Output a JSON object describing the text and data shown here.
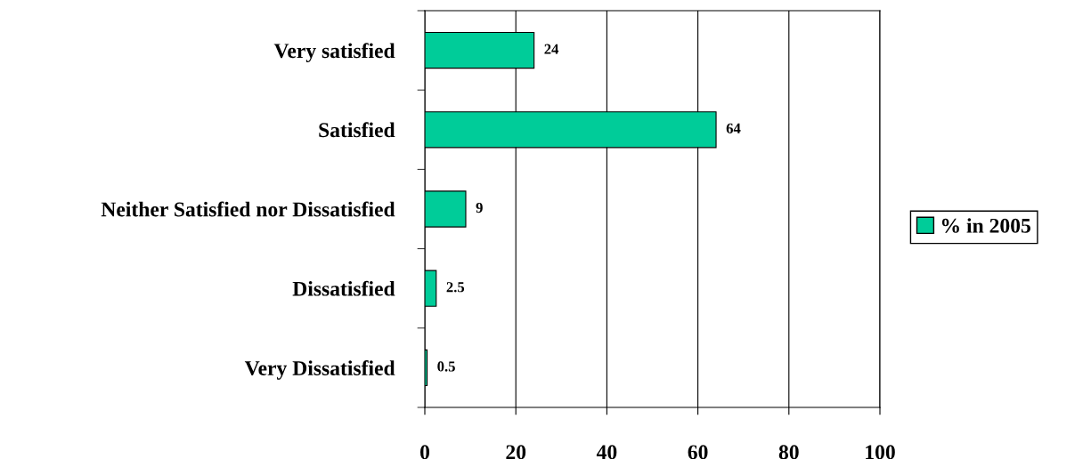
{
  "chart_data": {
    "type": "bar",
    "orientation": "horizontal",
    "categories": [
      "Very satisfied",
      "Satisfied",
      "Neither Satisfied nor Dissatisfied",
      "Dissatisfied",
      "Very Dissatisfied"
    ],
    "series": [
      {
        "name": "% in 2005",
        "color": "#00cc99",
        "values": [
          24,
          64,
          9,
          2.5,
          0.5
        ]
      }
    ],
    "xlim": [
      0,
      100
    ],
    "xticks": [
      0,
      20,
      40,
      60,
      80,
      100
    ],
    "grid": "x",
    "legend": "right",
    "data_labels": true
  }
}
